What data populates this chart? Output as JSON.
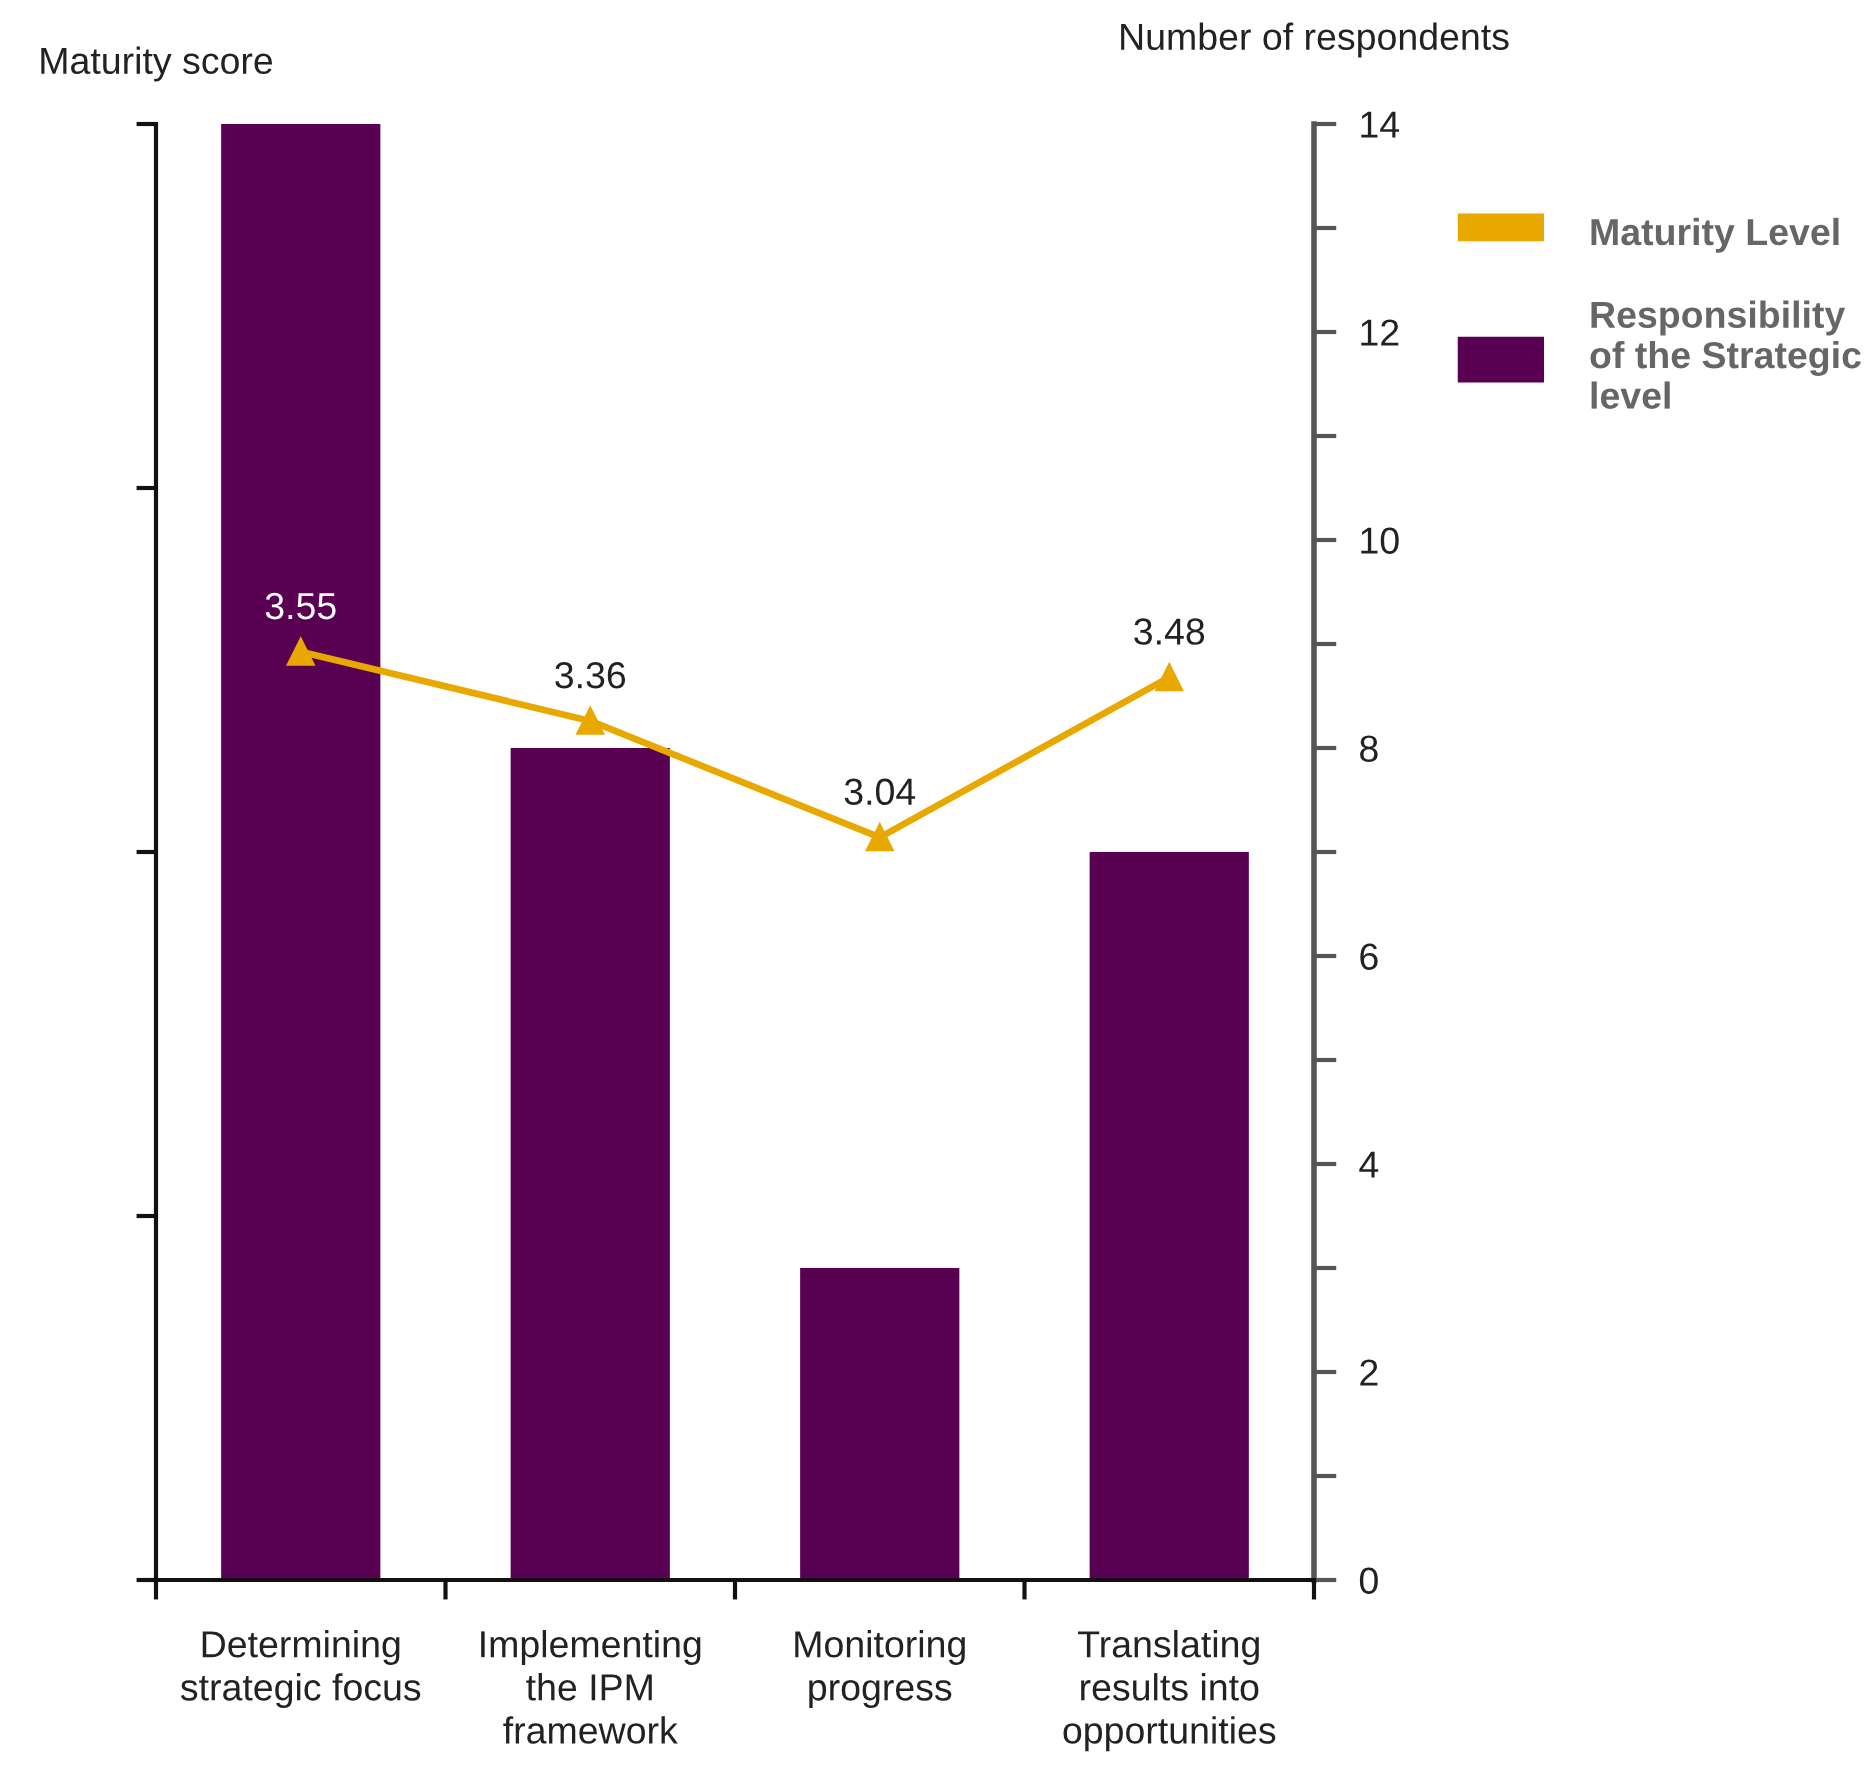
{
  "chart_data": {
    "type": "bar",
    "categories": [
      "Determining\nstrategic focus",
      "Implementing\nthe IPM\nframework",
      "Monitoring\nprogress",
      "Translating\nresults into\nopportunities"
    ],
    "ylabel": "Maturity score",
    "y2label": "Number of respondents",
    "series": [
      {
        "name": "Maturity Level",
        "type": "line",
        "color": "#e9a800",
        "values": [
          3.55,
          3.36,
          3.04,
          3.48
        ],
        "value_labels": [
          "3.55",
          "3.36",
          "3.04",
          "3.48"
        ]
      },
      {
        "name": "Responsibility\nof the Strategic\nlevel",
        "axis": "y2",
        "color": "#5a0052",
        "values": [
          14,
          8,
          3,
          7
        ]
      }
    ],
    "ylim": [
      1,
      5
    ],
    "yticks": [
      {
        "value": 1,
        "label": null
      },
      {
        "value": 2,
        "label": null
      },
      {
        "value": 3,
        "label": null
      },
      {
        "value": 4,
        "label": null
      },
      {
        "value": 5,
        "label": null
      }
    ],
    "y2lim": [
      0,
      14
    ],
    "y2ticks": [
      0,
      {
        "value": 1,
        "label": null
      },
      2,
      {
        "value": 3,
        "label": null
      },
      4,
      {
        "value": 5,
        "label": null
      },
      6,
      {
        "value": 7,
        "label": null
      },
      8,
      {
        "value": 9,
        "label": null
      },
      10,
      {
        "value": 11,
        "label": null
      },
      12,
      {
        "value": 13,
        "label": null
      },
      14
    ],
    "marker": "triangle",
    "legend": "top right"
  }
}
